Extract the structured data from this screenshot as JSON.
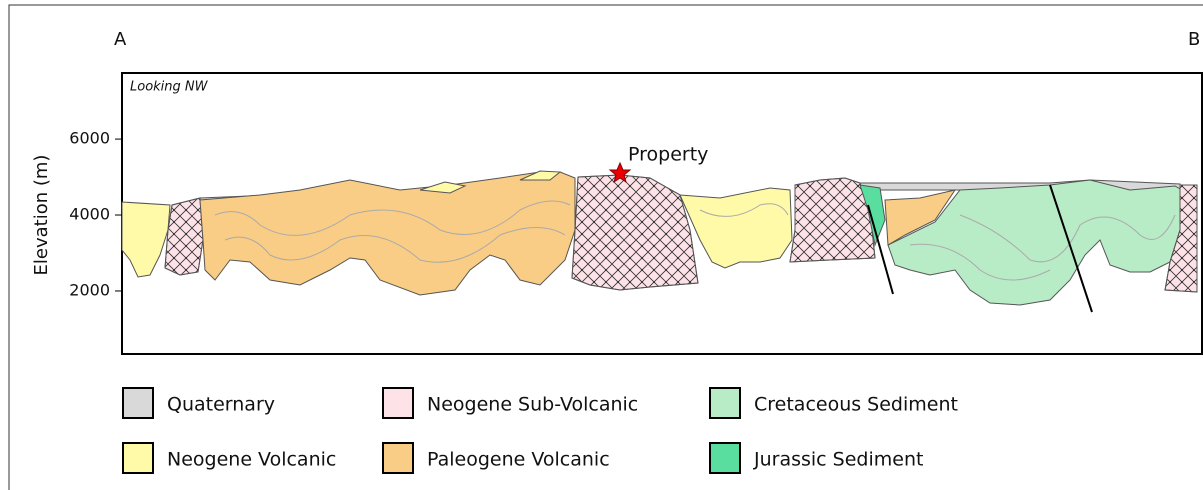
{
  "header": {
    "start_label": "A",
    "end_label": "B",
    "view_note": "Looking NW"
  },
  "axis": {
    "label": "Elevation (m)",
    "ticks": [
      6000,
      4000,
      2000
    ],
    "range": [
      340,
      7740
    ]
  },
  "annotation": "Property",
  "legend": [
    {
      "label": "Quaternary",
      "color": "#d9d9d9"
    },
    {
      "label": "Neogene Volcanic",
      "color": "#fffaa8"
    },
    {
      "label": "Neogene Sub-Volcanic",
      "color": "#fde2e8"
    },
    {
      "label": "Paleogene Volcanic",
      "color": "#f9cd85"
    },
    {
      "label": "Cretaceous Sediment",
      "color": "#b8ecc6"
    },
    {
      "label": "Jurassic Sediment",
      "color": "#5ade9f"
    }
  ]
}
